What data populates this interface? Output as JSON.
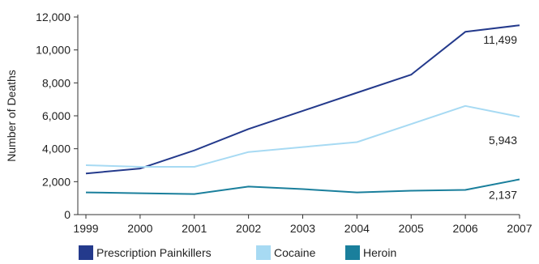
{
  "chart_data": {
    "type": "line",
    "title": "",
    "xlabel": "",
    "ylabel": "Number of Deaths",
    "x": [
      "1999",
      "2000",
      "2001",
      "2002",
      "2003",
      "2004",
      "2005",
      "2006",
      "2007"
    ],
    "ylim": [
      0,
      12000
    ],
    "yticks": [
      "0",
      "2,000",
      "4,000",
      "6,000",
      "8,000",
      "10,000",
      "12,000"
    ],
    "grid": false,
    "legend_position": "bottom",
    "series": [
      {
        "name": "Prescription Painkillers",
        "color": "#243a8c",
        "values": [
          2500,
          2800,
          3900,
          5200,
          6300,
          7400,
          8500,
          11100,
          11499
        ],
        "end_label": "11,499"
      },
      {
        "name": "Cocaine",
        "color": "#a7daf3",
        "values": [
          3000,
          2900,
          2900,
          3800,
          4100,
          4400,
          5500,
          6600,
          5943
        ],
        "end_label": "5,943"
      },
      {
        "name": "Heroin",
        "color": "#1a7f9c",
        "values": [
          1350,
          1300,
          1250,
          1700,
          1550,
          1350,
          1450,
          1500,
          2137
        ],
        "end_label": "2,137"
      }
    ]
  }
}
